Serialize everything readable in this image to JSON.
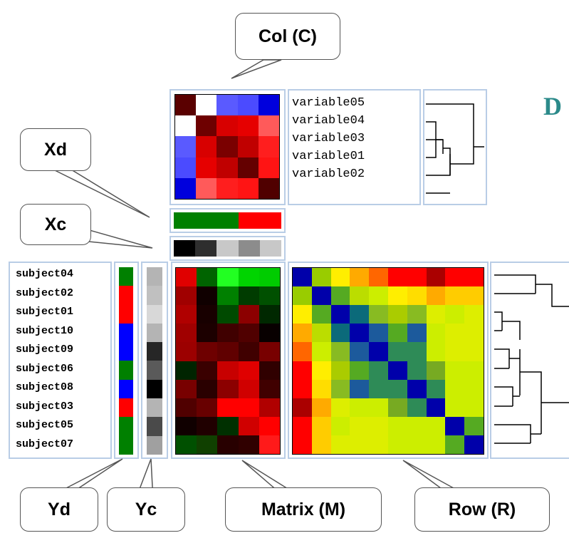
{
  "callouts": {
    "col": "Col (C)",
    "xd": "Xd",
    "xc": "Xc",
    "yd": "Yd",
    "yc": "Yc",
    "matrix": "Matrix (M)",
    "row": "Row (R)"
  },
  "partial_title": "D",
  "variables": [
    "variable05",
    "variable04",
    "variable03",
    "variable01",
    "variable02"
  ],
  "subjects": [
    "subject04",
    "subject02",
    "subject01",
    "subject10",
    "subject09",
    "subject06",
    "subject08",
    "subject03",
    "subject05",
    "subject07"
  ],
  "col_matrix": [
    [
      "#5a0000",
      "#ffffff",
      "#5a5aff",
      "#4b4bff",
      "#0000dd"
    ],
    [
      "#ffffff",
      "#6e0000",
      "#d80000",
      "#e60000",
      "#ff5a5a"
    ],
    [
      "#5a5aff",
      "#d80000",
      "#7a0000",
      "#c00000",
      "#ff1e1e"
    ],
    [
      "#4b4bff",
      "#e60000",
      "#c00000",
      "#640000",
      "#ff1414"
    ],
    [
      "#0000dd",
      "#ff5a5a",
      "#ff1e1e",
      "#ff1414",
      "#500000"
    ]
  ],
  "xd_colors": [
    "#008000",
    "#008000",
    "#008000",
    "#ff0000",
    "#ff0000"
  ],
  "xc_colors": [
    "#000000",
    "#2e2e2e",
    "#c8c8c8",
    "#8c8c8c",
    "#c8c8c8"
  ],
  "yd_colors": [
    "#008000",
    "#ff0000",
    "#ff0000",
    "#0000ff",
    "#0000ff",
    "#008000",
    "#0000ff",
    "#ff0000",
    "#008000",
    "#008000"
  ],
  "yc_colors": [
    "#b4b4b4",
    "#c0c0c0",
    "#d8d8d8",
    "#b4b4b4",
    "#262626",
    "#5a5a5a",
    "#000000",
    "#b4b4b4",
    "#4a4a4a",
    "#a0a0a0"
  ],
  "data_matrix": [
    [
      "#e00000",
      "#006400",
      "#22ff22",
      "#00d400",
      "#00cc00"
    ],
    [
      "#a00000",
      "#100000",
      "#008000",
      "#003c00",
      "#005000"
    ],
    [
      "#b00000",
      "#180000",
      "#004a00",
      "#8c0000",
      "#002800"
    ],
    [
      "#a00000",
      "#1c0000",
      "#400000",
      "#500000",
      "#080000"
    ],
    [
      "#9c0000",
      "#6e0000",
      "#600000",
      "#400000",
      "#780000"
    ],
    [
      "#002400",
      "#3a0000",
      "#c80000",
      "#e00000",
      "#300000"
    ],
    [
      "#780000",
      "#2a0000",
      "#8c0000",
      "#d00000",
      "#400000"
    ],
    [
      "#500000",
      "#680000",
      "#ff0000",
      "#ff0000",
      "#b00000"
    ],
    [
      "#100000",
      "#200000",
      "#003000",
      "#d00000",
      "#ff0000"
    ],
    [
      "#005000",
      "#104000",
      "#280000",
      "#300000",
      "#ff1a1a"
    ]
  ],
  "row_matrix": [
    [
      "#0000aa",
      "#99cc00",
      "#ffee00",
      "#ffaa00",
      "#ff6600",
      "#ff0000",
      "#ff0000",
      "#aa0000",
      "#ff0000",
      "#ff0000"
    ],
    [
      "#99cc00",
      "#0000aa",
      "#55aa22",
      "#bbdd00",
      "#ccee00",
      "#ffee00",
      "#ffdd00",
      "#ffaa00",
      "#ffcc00",
      "#ffcc00"
    ],
    [
      "#ffee00",
      "#55aa22",
      "#0000aa",
      "#0b6a7a",
      "#88bb22",
      "#aacc00",
      "#88bb22",
      "#ddee00",
      "#ccee00",
      "#ddee00"
    ],
    [
      "#ffaa00",
      "#bbdd00",
      "#0b6a7a",
      "#0000aa",
      "#1c5a9c",
      "#55aa22",
      "#1c5a9c",
      "#ccee00",
      "#ddee00",
      "#ddee00"
    ],
    [
      "#ff6600",
      "#ccee00",
      "#88bb22",
      "#1c5a9c",
      "#0000aa",
      "#2e8b57",
      "#2e8b57",
      "#ccee00",
      "#ddee00",
      "#ddee00"
    ],
    [
      "#ff0000",
      "#ffee00",
      "#aacc00",
      "#55aa22",
      "#2e8b57",
      "#0000aa",
      "#2e8b57",
      "#77aa22",
      "#ccee00",
      "#ccee00"
    ],
    [
      "#ff0000",
      "#ffdd00",
      "#88bb22",
      "#1c5a9c",
      "#2e8b57",
      "#2e8b57",
      "#0000aa",
      "#2e8b57",
      "#ccee00",
      "#ccee00"
    ],
    [
      "#aa0000",
      "#ffaa00",
      "#ddee00",
      "#ccee00",
      "#ccee00",
      "#77aa22",
      "#2e8b57",
      "#0000aa",
      "#ccee00",
      "#ccee00"
    ],
    [
      "#ff0000",
      "#ffcc00",
      "#ccee00",
      "#ddee00",
      "#ddee00",
      "#ccee00",
      "#ccee00",
      "#ccee00",
      "#0000aa",
      "#55aa22"
    ],
    [
      "#ff0000",
      "#ffcc00",
      "#ddee00",
      "#ddee00",
      "#ddee00",
      "#ccee00",
      "#ccee00",
      "#ccee00",
      "#55aa22",
      "#0000aa"
    ]
  ],
  "colors": {
    "panel_border": "#b9cde6",
    "title_teal": "#2b8a8a"
  }
}
